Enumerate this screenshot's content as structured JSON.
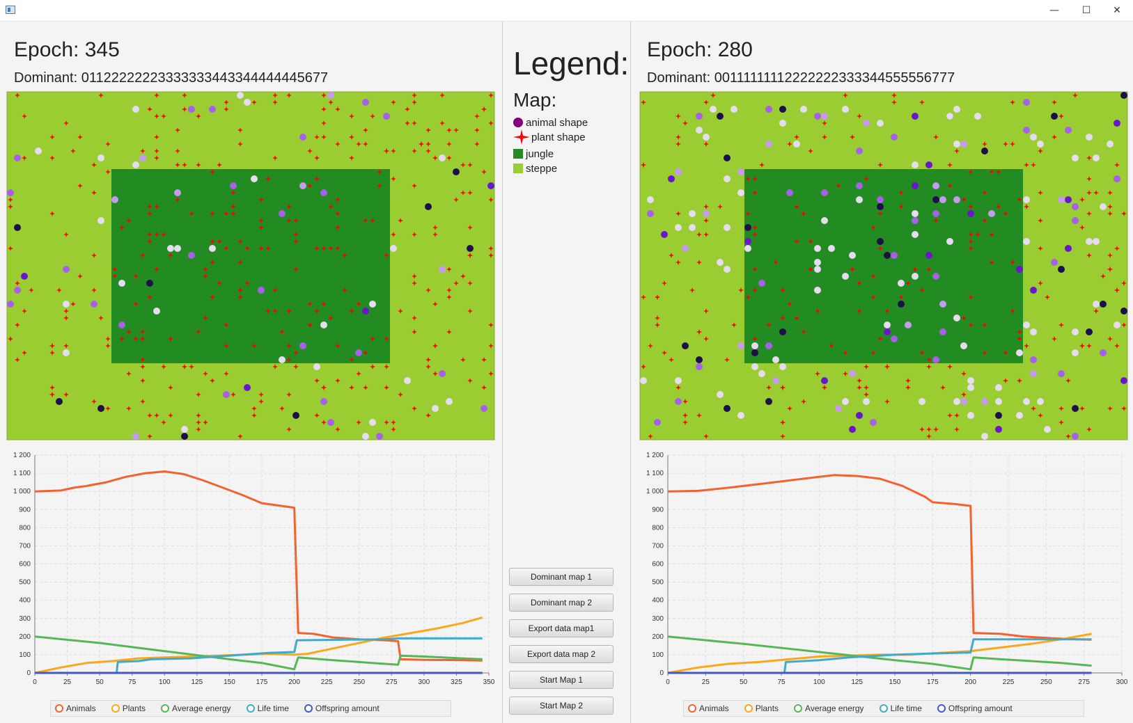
{
  "window": {
    "minimize_glyph": "—",
    "maximize_glyph": "☐",
    "close_glyph": "✕"
  },
  "legend": {
    "title": "Legend:",
    "map_heading": "Map:",
    "items": [
      {
        "label": "animal shape",
        "icon": "animal-circle-icon",
        "color": "#800080"
      },
      {
        "label": "plant shape",
        "icon": "plant-star-icon",
        "color": "#ff0000"
      },
      {
        "label": "jungle",
        "icon": "jungle-square-icon",
        "color": "#228b22"
      },
      {
        "label": "steppe",
        "icon": "steppe-square-icon",
        "color": "#9acd32"
      }
    ]
  },
  "buttons": {
    "dominant1": "Dominant map 1",
    "dominant2": "Dominant map 2",
    "export1": "Export data map1",
    "export2": "Export data map 2",
    "start1": "Start Map 1",
    "start2": "Start Map 2"
  },
  "colors": {
    "steppe": "#9acd32",
    "jungle": "#228b22",
    "plant": "#ff0000"
  },
  "map1": {
    "epoch": "Epoch: 345",
    "dominant": "Dominant: 01122222223333333443344444445677"
  },
  "map2": {
    "epoch": "Epoch: 280",
    "dominant": "Dominant: 00111111112222222333344555556777"
  },
  "chart_legend": [
    {
      "name": "Animals",
      "color": "#f3622d"
    },
    {
      "name": "Plants",
      "color": "#fba71b"
    },
    {
      "name": "Average energy",
      "color": "#57b757"
    },
    {
      "name": "Life time",
      "color": "#41a9c9"
    },
    {
      "name": "Offspring amount",
      "color": "#4258c9"
    }
  ],
  "chart_data": [
    {
      "type": "line",
      "ylim": [
        0,
        1200
      ],
      "xlim": [
        0,
        350
      ],
      "yticks": [
        "0",
        "100",
        "200",
        "300",
        "400",
        "500",
        "600",
        "700",
        "800",
        "900",
        "1 000",
        "1 100",
        "1 200"
      ],
      "xticks": [
        "0",
        "25",
        "50",
        "75",
        "100",
        "125",
        "150",
        "175",
        "200",
        "225",
        "250",
        "275",
        "300",
        "325",
        "350"
      ],
      "series": [
        {
          "name": "Animals",
          "points": [
            [
              0,
              1000
            ],
            [
              20,
              1005
            ],
            [
              30,
              1020
            ],
            [
              40,
              1030
            ],
            [
              55,
              1050
            ],
            [
              70,
              1080
            ],
            [
              85,
              1100
            ],
            [
              100,
              1110
            ],
            [
              115,
              1095
            ],
            [
              130,
              1060
            ],
            [
              145,
              1020
            ],
            [
              160,
              980
            ],
            [
              175,
              935
            ],
            [
              190,
              920
            ],
            [
              200,
              910
            ],
            [
              203,
              220
            ],
            [
              215,
              215
            ],
            [
              230,
              195
            ],
            [
              250,
              185
            ],
            [
              270,
              180
            ],
            [
              280,
              175
            ],
            [
              282,
              75
            ],
            [
              300,
              72
            ],
            [
              330,
              70
            ],
            [
              345,
              68
            ]
          ]
        },
        {
          "name": "Plants",
          "points": [
            [
              0,
              0
            ],
            [
              20,
              30
            ],
            [
              40,
              55
            ],
            [
              60,
              65
            ],
            [
              80,
              80
            ],
            [
              100,
              85
            ],
            [
              120,
              90
            ],
            [
              140,
              95
            ],
            [
              160,
              100
            ],
            [
              180,
              105
            ],
            [
              200,
              100
            ],
            [
              210,
              105
            ],
            [
              230,
              135
            ],
            [
              250,
              165
            ],
            [
              270,
              195
            ],
            [
              290,
              220
            ],
            [
              310,
              245
            ],
            [
              330,
              275
            ],
            [
              345,
              305
            ]
          ]
        },
        {
          "name": "Average energy",
          "points": [
            [
              0,
              200
            ],
            [
              50,
              165
            ],
            [
              100,
              120
            ],
            [
              150,
              75
            ],
            [
              175,
              55
            ],
            [
              200,
              20
            ],
            [
              203,
              85
            ],
            [
              230,
              70
            ],
            [
              260,
              55
            ],
            [
              280,
              45
            ],
            [
              282,
              95
            ],
            [
              300,
              90
            ],
            [
              330,
              80
            ],
            [
              345,
              75
            ]
          ]
        },
        {
          "name": "Life time",
          "points": [
            [
              0,
              0
            ],
            [
              63,
              0
            ],
            [
              64,
              60
            ],
            [
              80,
              65
            ],
            [
              90,
              75
            ],
            [
              120,
              80
            ],
            [
              150,
              95
            ],
            [
              180,
              110
            ],
            [
              200,
              115
            ],
            [
              202,
              180
            ],
            [
              270,
              185
            ],
            [
              280,
              190
            ],
            [
              345,
              190
            ]
          ]
        },
        {
          "name": "Offspring amount",
          "points": [
            [
              0,
              0
            ],
            [
              345,
              0
            ]
          ]
        }
      ]
    },
    {
      "type": "line",
      "ylim": [
        0,
        1200
      ],
      "xlim": [
        0,
        300
      ],
      "yticks": [
        "0",
        "100",
        "200",
        "300",
        "400",
        "500",
        "600",
        "700",
        "800",
        "900",
        "1 000",
        "1 100",
        "1 200"
      ],
      "xticks": [
        "0",
        "25",
        "50",
        "75",
        "100",
        "125",
        "150",
        "175",
        "200",
        "225",
        "250",
        "275",
        "300"
      ],
      "series": [
        {
          "name": "Animals",
          "points": [
            [
              0,
              1000
            ],
            [
              20,
              1003
            ],
            [
              40,
              1020
            ],
            [
              60,
              1040
            ],
            [
              80,
              1060
            ],
            [
              100,
              1080
            ],
            [
              110,
              1090
            ],
            [
              125,
              1085
            ],
            [
              140,
              1070
            ],
            [
              155,
              1030
            ],
            [
              170,
              970
            ],
            [
              175,
              940
            ],
            [
              190,
              930
            ],
            [
              200,
              920
            ],
            [
              202,
              220
            ],
            [
              220,
              215
            ],
            [
              235,
              200
            ],
            [
              255,
              190
            ],
            [
              270,
              185
            ],
            [
              280,
              183
            ]
          ]
        },
        {
          "name": "Plants",
          "points": [
            [
              0,
              0
            ],
            [
              20,
              30
            ],
            [
              40,
              50
            ],
            [
              60,
              60
            ],
            [
              80,
              75
            ],
            [
              100,
              90
            ],
            [
              120,
              95
            ],
            [
              140,
              100
            ],
            [
              160,
              100
            ],
            [
              180,
              110
            ],
            [
              200,
              120
            ],
            [
              220,
              140
            ],
            [
              240,
              160
            ],
            [
              260,
              185
            ],
            [
              280,
              215
            ]
          ]
        },
        {
          "name": "Average energy",
          "points": [
            [
              0,
              200
            ],
            [
              50,
              160
            ],
            [
              100,
              115
            ],
            [
              150,
              70
            ],
            [
              175,
              50
            ],
            [
              200,
              20
            ],
            [
              202,
              85
            ],
            [
              220,
              75
            ],
            [
              240,
              65
            ],
            [
              260,
              55
            ],
            [
              280,
              40
            ]
          ]
        },
        {
          "name": "Life time",
          "points": [
            [
              0,
              0
            ],
            [
              77,
              0
            ],
            [
              78,
              60
            ],
            [
              100,
              70
            ],
            [
              120,
              85
            ],
            [
              150,
              100
            ],
            [
              180,
              108
            ],
            [
              200,
              112
            ],
            [
              202,
              185
            ],
            [
              240,
              185
            ],
            [
              280,
              185
            ]
          ]
        },
        {
          "name": "Offspring amount",
          "points": [
            [
              0,
              0
            ],
            [
              280,
              0
            ]
          ]
        }
      ]
    }
  ]
}
